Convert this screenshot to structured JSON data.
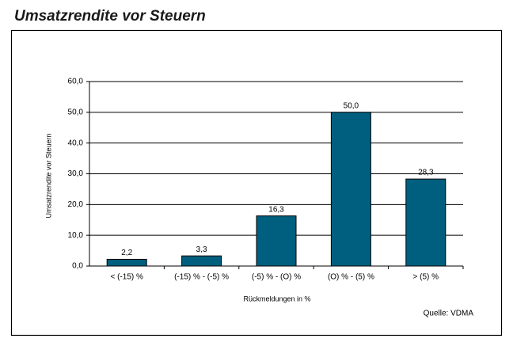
{
  "chart_data": {
    "type": "bar",
    "title": "Umsatzrendite vor Steuern",
    "x_label": "Rückmeldungen in %",
    "y_label": "Umsatzrendite vor Steuern",
    "source": "Quelle: VDMA",
    "categories": [
      "< (-15) %",
      "(-15) % - (-5) %",
      "(-5) % - (O) %",
      "(O) % - (5) %",
      "> (5) %"
    ],
    "values": [
      2.2,
      3.3,
      16.3,
      50.0,
      28.3
    ],
    "value_labels": [
      "2,2",
      "3,3",
      "16,3",
      "50,0",
      "28,3"
    ],
    "color": "#005f7e",
    "ylim": [
      0,
      60
    ],
    "yticks": [
      {
        "value": 0,
        "label": "0,0"
      },
      {
        "value": 10,
        "label": "10,0"
      },
      {
        "value": 20,
        "label": "20,0"
      },
      {
        "value": 30,
        "label": "30,0"
      },
      {
        "value": 40,
        "label": "40,0"
      },
      {
        "value": 50,
        "label": "50,0"
      },
      {
        "value": 60,
        "label": "60,0"
      }
    ],
    "grid": true
  }
}
